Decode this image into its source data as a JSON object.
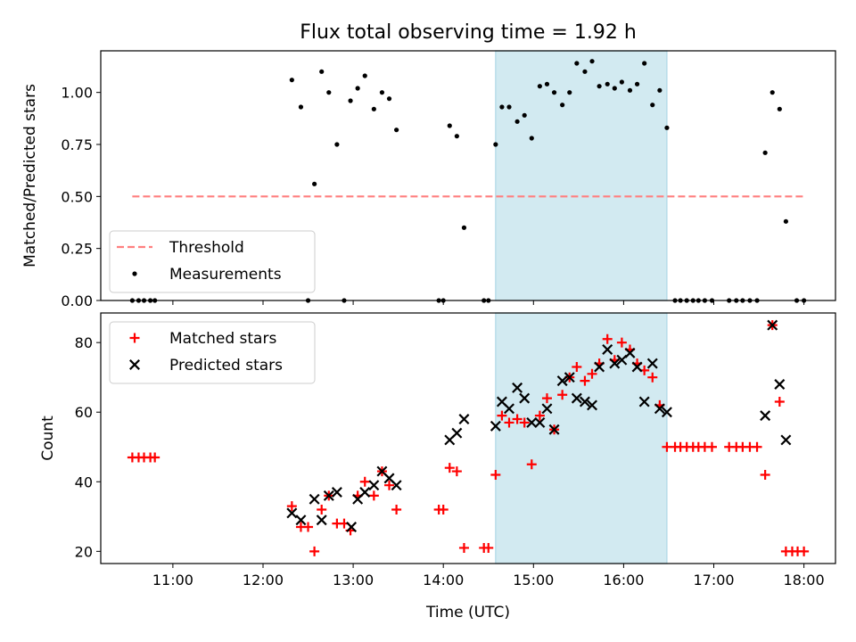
{
  "title": "Flux total observing time = 1.92 h",
  "colors": {
    "threshold": "#ff8080",
    "measurements": "#000000",
    "matched": "#ff0000",
    "predicted": "#000000",
    "highlight": "#add8e6"
  },
  "chart_data": [
    {
      "type": "scatter",
      "ylabel": "Matched/Predicted stars",
      "xlim": [
        10.2,
        18.35
      ],
      "ylim": [
        0,
        1.2
      ],
      "yticks": [
        0,
        0.25,
        0.5,
        0.75,
        1.0
      ],
      "ytick_labels": [
        "0.00",
        "0.25",
        "0.50",
        "0.75",
        "1.00"
      ],
      "highlight_span": [
        14.58,
        16.48
      ],
      "legend": {
        "location": "lower-left",
        "entries": [
          "Threshold",
          "Measurements"
        ]
      },
      "series": [
        {
          "name": "Threshold",
          "kind": "dashed-line",
          "x": [
            10.55,
            18.0
          ],
          "y": [
            0.5,
            0.5
          ]
        },
        {
          "name": "Measurements",
          "kind": "dots",
          "x": [
            10.55,
            10.62,
            10.68,
            10.75,
            10.8,
            12.32,
            12.42,
            12.5,
            12.57,
            12.65,
            12.73,
            12.82,
            12.9,
            12.97,
            13.05,
            13.13,
            13.23,
            13.32,
            13.4,
            13.48,
            13.95,
            14.0,
            14.07,
            14.15,
            14.23,
            14.45,
            14.5,
            14.58,
            14.65,
            14.73,
            14.82,
            14.9,
            14.98,
            15.07,
            15.15,
            15.23,
            15.32,
            15.4,
            15.48,
            15.57,
            15.65,
            15.73,
            15.82,
            15.9,
            15.98,
            16.07,
            16.15,
            16.23,
            16.32,
            16.4,
            16.48,
            16.57,
            16.63,
            16.7,
            16.77,
            16.83,
            16.9,
            16.98,
            17.17,
            17.25,
            17.32,
            17.4,
            17.48,
            17.57,
            17.65,
            17.73,
            17.8,
            17.92,
            18.0
          ],
          "y": [
            0,
            0,
            0,
            0,
            0,
            1.06,
            0.93,
            0,
            0.56,
            1.1,
            1.0,
            0.75,
            0,
            0.96,
            1.02,
            1.08,
            0.92,
            1.0,
            0.97,
            0.82,
            0,
            0,
            0.84,
            0.79,
            0.35,
            0,
            0,
            0.75,
            0.93,
            0.93,
            0.86,
            0.89,
            0.78,
            1.03,
            1.04,
            1.0,
            0.94,
            1.0,
            1.14,
            1.1,
            1.15,
            1.03,
            1.04,
            1.02,
            1.05,
            1.01,
            1.04,
            1.14,
            0.94,
            1.01,
            0.83,
            0,
            0,
            0,
            0,
            0,
            0,
            0,
            0,
            0,
            0,
            0,
            0,
            0.71,
            1.0,
            0.92,
            0.38,
            0,
            0
          ]
        }
      ]
    },
    {
      "type": "scatter",
      "ylabel": "Count",
      "xlabel": "Time (UTC)",
      "xlim": [
        10.2,
        18.35
      ],
      "ylim": [
        16.5,
        88.5
      ],
      "yticks": [
        20,
        40,
        60,
        80
      ],
      "ytick_labels": [
        "20",
        "40",
        "60",
        "80"
      ],
      "xticks": [
        11,
        12,
        13,
        14,
        15,
        16,
        17,
        18
      ],
      "xtick_labels": [
        "11:00",
        "12:00",
        "13:00",
        "14:00",
        "15:00",
        "16:00",
        "17:00",
        "18:00"
      ],
      "highlight_span": [
        14.58,
        16.48
      ],
      "legend": {
        "location": "upper-left",
        "entries": [
          "Matched stars",
          "Predicted stars"
        ]
      },
      "series": [
        {
          "name": "Matched stars",
          "kind": "plus",
          "x": [
            10.55,
            10.62,
            10.68,
            10.75,
            10.8,
            12.32,
            12.42,
            12.5,
            12.57,
            12.65,
            12.73,
            12.82,
            12.9,
            12.97,
            13.05,
            13.13,
            13.23,
            13.32,
            13.4,
            13.48,
            13.95,
            14.0,
            14.07,
            14.15,
            14.23,
            14.45,
            14.5,
            14.58,
            14.65,
            14.73,
            14.82,
            14.9,
            14.98,
            15.07,
            15.15,
            15.23,
            15.32,
            15.4,
            15.48,
            15.57,
            15.65,
            15.73,
            15.82,
            15.9,
            15.98,
            16.07,
            16.15,
            16.23,
            16.32,
            16.4,
            16.48,
            16.57,
            16.63,
            16.7,
            16.77,
            16.83,
            16.9,
            16.98,
            17.17,
            17.25,
            17.32,
            17.4,
            17.48,
            17.57,
            17.65,
            17.73,
            17.8,
            17.87,
            17.93,
            18.0
          ],
          "y": [
            47,
            47,
            47,
            47,
            47,
            33,
            27,
            27,
            20,
            32,
            36,
            28,
            28,
            26,
            36,
            40,
            36,
            43,
            39,
            32,
            32,
            32,
            44,
            43,
            21,
            21,
            21,
            42,
            59,
            57,
            58,
            57,
            45,
            59,
            64,
            55,
            65,
            70,
            73,
            69,
            71,
            74,
            81,
            75,
            80,
            78,
            74,
            72,
            70,
            62,
            50,
            50,
            50,
            50,
            50,
            50,
            50,
            50,
            50,
            50,
            50,
            50,
            50,
            42,
            85,
            63,
            20,
            20,
            20,
            20
          ]
        },
        {
          "name": "Predicted stars",
          "kind": "x",
          "x": [
            12.32,
            12.42,
            12.57,
            12.65,
            12.73,
            12.82,
            12.98,
            13.05,
            13.13,
            13.23,
            13.32,
            13.4,
            13.48,
            14.07,
            14.15,
            14.23,
            14.58,
            14.65,
            14.73,
            14.82,
            14.9,
            14.98,
            15.07,
            15.15,
            15.23,
            15.32,
            15.4,
            15.48,
            15.57,
            15.65,
            15.73,
            15.82,
            15.9,
            15.98,
            16.07,
            16.15,
            16.23,
            16.32,
            16.4,
            16.48,
            17.57,
            17.65,
            17.73,
            17.8
          ],
          "y": [
            31,
            29,
            35,
            29,
            36,
            37,
            27,
            35,
            37,
            39,
            43,
            41,
            39,
            52,
            54,
            58,
            56,
            63,
            61,
            67,
            64,
            57,
            57,
            61,
            55,
            69,
            70,
            64,
            63,
            62,
            73,
            78,
            74,
            75,
            77,
            73,
            63,
            74,
            61,
            60,
            59,
            85,
            68,
            52
          ]
        }
      ]
    }
  ]
}
